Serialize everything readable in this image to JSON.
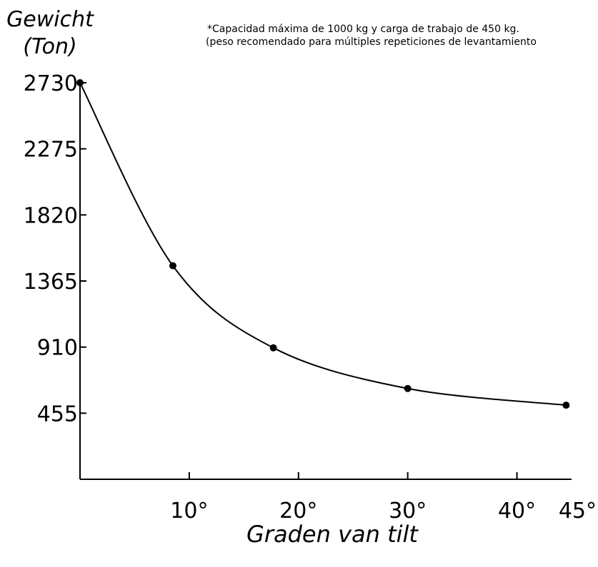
{
  "chart_data": {
    "type": "line",
    "xlabel": "Graden van tilt",
    "ylabel_lines": [
      "Gewicht",
      "(Ton)"
    ],
    "annotation_lines": [
      "*Capacidad máxima de 1000 kg y carga de trabajo de 450 kg.",
      "(peso recomendado para múltiples repeticiones de levantamiento"
    ],
    "xlim": [
      0,
      45
    ],
    "ylim": [
      0,
      2730
    ],
    "x_ticks": [
      {
        "value": 10,
        "label": "10°"
      },
      {
        "value": 20,
        "label": "20°"
      },
      {
        "value": 30,
        "label": "30°"
      },
      {
        "value": 40,
        "label": "40°"
      },
      {
        "value": 45,
        "label": "45°"
      }
    ],
    "y_ticks": [
      {
        "value": 455,
        "label": "455"
      },
      {
        "value": 910,
        "label": "910"
      },
      {
        "value": 1365,
        "label": "1365"
      },
      {
        "value": 1820,
        "label": "1820"
      },
      {
        "value": 2275,
        "label": "2275"
      },
      {
        "value": 2730,
        "label": "2730"
      }
    ],
    "series": [
      {
        "points": [
          {
            "x": 0,
            "y": 2730
          },
          {
            "x": 8.5,
            "y": 1470
          },
          {
            "x": 17.7,
            "y": 905
          },
          {
            "x": 30,
            "y": 625
          },
          {
            "x": 44.5,
            "y": 510
          }
        ]
      }
    ],
    "grid": false
  }
}
